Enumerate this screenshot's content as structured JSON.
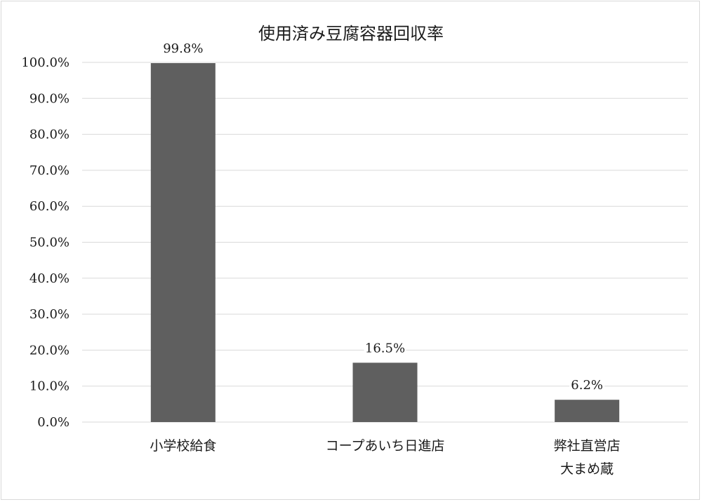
{
  "chart_data": {
    "type": "bar",
    "title": "使用済み豆腐容器回収率",
    "xlabel": "",
    "ylabel": "",
    "categories": [
      [
        "小学校給食"
      ],
      [
        "コープあいち日進店"
      ],
      [
        "弊社直営店",
        "大まめ蔵"
      ]
    ],
    "values": [
      99.8,
      16.5,
      6.2
    ],
    "data_labels": [
      "99.8%",
      "16.5%",
      "6.2%"
    ],
    "y_ticks": [
      "0.0%",
      "10.0%",
      "20.0%",
      "30.0%",
      "40.0%",
      "50.0%",
      "60.0%",
      "70.0%",
      "80.0%",
      "90.0%",
      "100.0%"
    ],
    "ylim": [
      0,
      100
    ],
    "grid": true,
    "legend": "none",
    "colors": {
      "bar": "#5f5f5f",
      "grid": "#d9d9d9",
      "axis": "#d9d9d9"
    }
  }
}
